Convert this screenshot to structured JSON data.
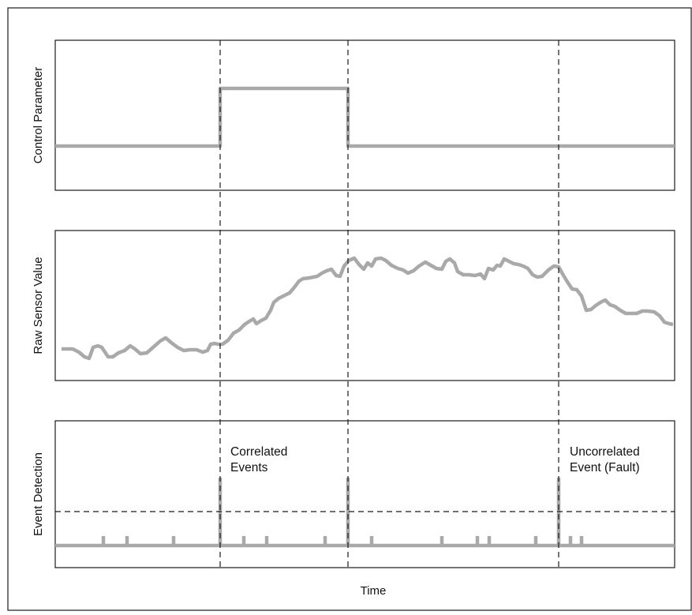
{
  "panels": [
    {
      "id": "control",
      "label": "Control Parameter"
    },
    {
      "id": "sensor",
      "label": "Raw Sensor Value"
    },
    {
      "id": "detection",
      "label": "Event Detection"
    }
  ],
  "x_axis_label": "Time",
  "annotations": {
    "correlated_line1": "Correlated",
    "correlated_line2": "Events",
    "uncorrelated_line1": "Uncorrelated",
    "uncorrelated_line2": "Event (Fault)"
  },
  "colors": {
    "signal": "#a9a9a9",
    "frame": "#1a1a1a"
  }
}
